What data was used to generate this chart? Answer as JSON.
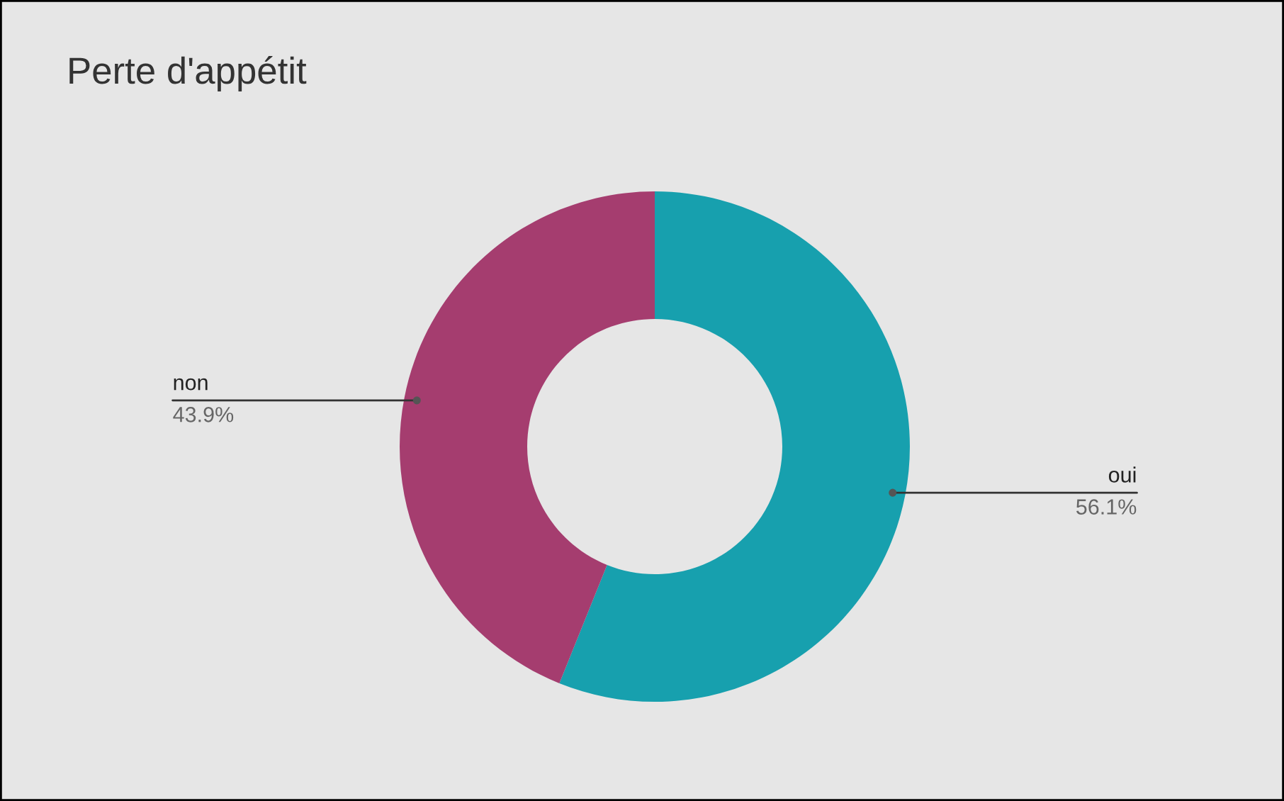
{
  "chart_data": {
    "type": "donut",
    "title": "Perte d'appétit",
    "categories": [
      "oui",
      "non"
    ],
    "values": [
      56.1,
      43.9
    ],
    "colors": [
      "#17a0ae",
      "#a53d6f"
    ],
    "value_labels": [
      "56.1%",
      "43.9%"
    ],
    "legend": false
  }
}
